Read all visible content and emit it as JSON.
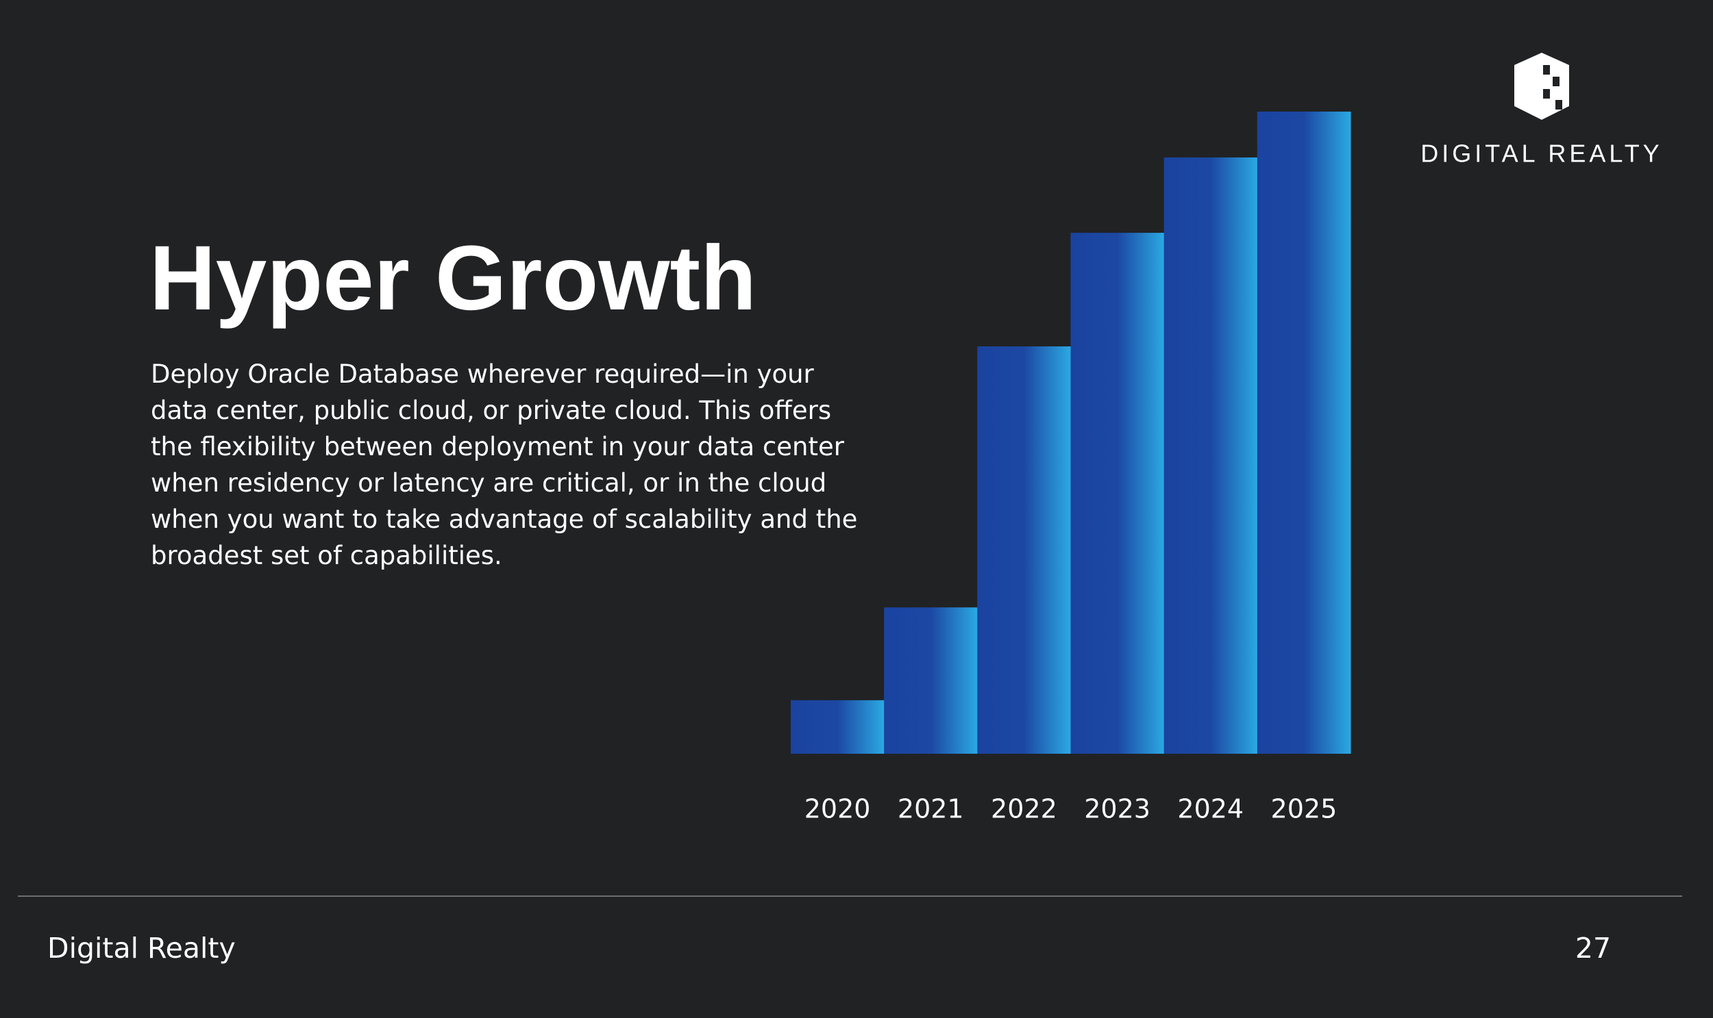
{
  "logo": {
    "text": "DIGITAL REALTY"
  },
  "title": "Hyper Growth",
  "body": "Deploy Oracle Database wherever required—in your data center, public cloud, or private cloud. This offers the flexibility between deployment in your data center when residency or latency are critical, or in the cloud when you want to take advantage of scalability and the broadest set of capabilities.",
  "chart_data": {
    "type": "bar",
    "categories": [
      "2020",
      "2021",
      "2022",
      "2023",
      "2024",
      "2025"
    ],
    "values": [
      49,
      134,
      373,
      477,
      546,
      588
    ],
    "color": "#1b46a1"
  },
  "footer": {
    "left": "Digital Realty",
    "page": "27"
  }
}
